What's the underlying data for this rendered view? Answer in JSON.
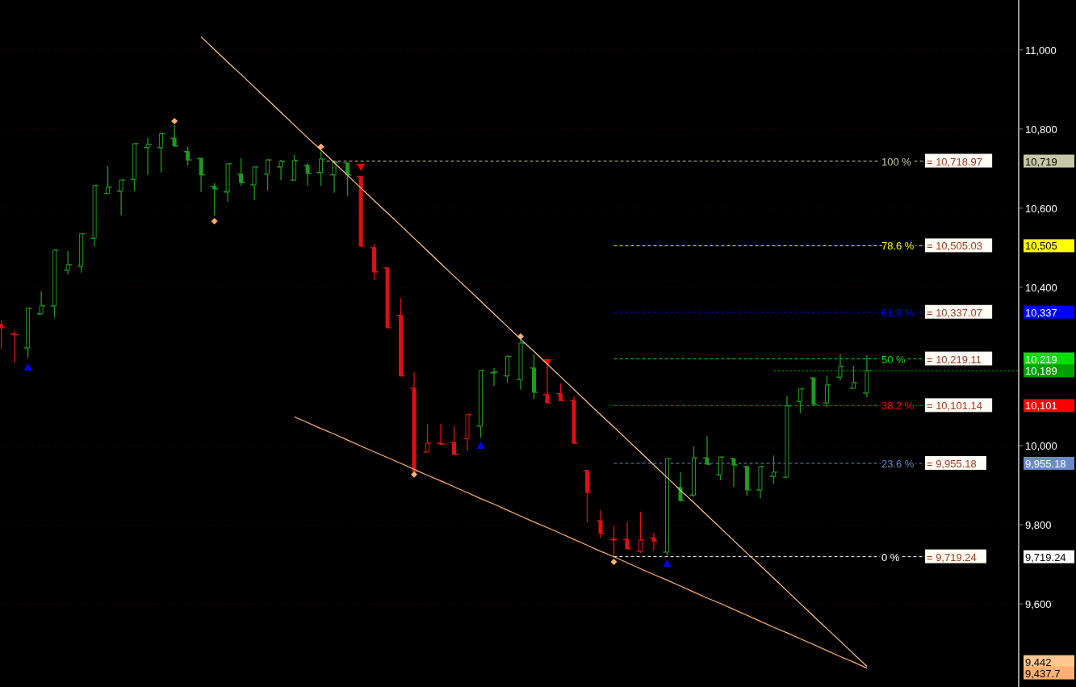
{
  "chart_data": {
    "type": "candlestick",
    "categories": [
      null,
      null,
      null,
      null,
      null,
      null,
      null,
      null,
      null,
      null,
      null,
      null,
      null,
      null,
      null,
      null,
      null,
      null,
      null,
      null,
      null,
      null,
      null,
      null,
      null,
      null,
      null,
      null,
      null,
      null,
      null,
      null,
      null,
      null,
      null,
      null,
      null,
      null,
      null,
      null,
      null,
      null,
      null,
      null,
      null,
      null,
      null,
      null,
      null,
      null,
      null,
      null,
      null,
      null,
      null,
      null,
      null,
      null,
      null,
      null,
      null,
      null,
      null,
      null,
      null,
      null
    ],
    "ohlc": [
      [
        10306,
        10316,
        10245,
        10298
      ],
      [
        10282,
        10290,
        10210,
        10280
      ],
      [
        10247,
        10349,
        10222,
        10347
      ],
      [
        10333,
        10390,
        10331,
        10353
      ],
      [
        10353,
        10496,
        10324,
        10494
      ],
      [
        10443,
        10492,
        10433,
        10457
      ],
      [
        10453,
        10537,
        10437,
        10535
      ],
      [
        10524,
        10659,
        10504,
        10657
      ],
      [
        10637,
        10706,
        10637,
        10653
      ],
      [
        10643,
        10671,
        10582,
        10671
      ],
      [
        10673,
        10763,
        10643,
        10763
      ],
      [
        10753,
        10777,
        10684,
        10761
      ],
      [
        10753,
        10790,
        10690,
        10788
      ],
      [
        10777,
        10810,
        10757,
        10757
      ],
      [
        10743,
        10755,
        10708,
        10722
      ],
      [
        10726,
        10726,
        10641,
        10684
      ],
      [
        10655,
        10663,
        10582,
        10649
      ],
      [
        10641,
        10712,
        10616,
        10712
      ],
      [
        10686,
        10726,
        10657,
        10665
      ],
      [
        10659,
        10704,
        10620,
        10704
      ],
      [
        10686,
        10722,
        10645,
        10722
      ],
      [
        10704,
        10722,
        10671,
        10718
      ],
      [
        10671,
        10735,
        10671,
        10720
      ],
      [
        10708,
        10714,
        10657,
        10688
      ],
      [
        10690,
        10743,
        10657,
        10724
      ],
      [
        10684,
        10718,
        10639,
        10716
      ],
      [
        10714,
        10714,
        10631,
        10684
      ],
      [
        10680,
        10682,
        10504,
        10504
      ],
      [
        10500,
        10510,
        10418,
        10439
      ],
      [
        10449,
        10449,
        10298,
        10298
      ],
      [
        10329,
        10373,
        10176,
        10176
      ],
      [
        10145,
        10186,
        9935,
        9935
      ],
      [
        9984,
        10055,
        9984,
        10006
      ],
      [
        10006,
        10055,
        10002,
        10004
      ],
      [
        10008,
        10049,
        9978,
        9978
      ],
      [
        10018,
        10078,
        9986,
        10078
      ],
      [
        10049,
        10190,
        10020,
        10190
      ],
      [
        10184,
        10196,
        10151,
        10186
      ],
      [
        10176,
        10229,
        10159,
        10225
      ],
      [
        10167,
        10267,
        10141,
        10259
      ],
      [
        10196,
        10231,
        10118,
        10135
      ],
      [
        10129,
        10200,
        10108,
        10108
      ],
      [
        10131,
        10157,
        10114,
        10114
      ],
      [
        10114,
        10125,
        10006,
        10006
      ],
      [
        9937,
        9939,
        9806,
        9882
      ],
      [
        9810,
        9837,
        9767,
        9778
      ],
      [
        9763,
        9798,
        9719,
        9763
      ],
      [
        9763,
        9806,
        9739,
        9739
      ],
      [
        9733,
        9833,
        9729,
        9761
      ],
      [
        9767,
        9780,
        9735,
        9759
      ],
      [
        9731,
        9967,
        9722,
        9967
      ],
      [
        9894,
        9933,
        9861,
        9861
      ],
      [
        9875,
        9998,
        9871,
        9969
      ],
      [
        9969,
        10024,
        9953,
        9953
      ],
      [
        9926,
        9971,
        9912,
        9971
      ],
      [
        9967,
        9967,
        9896,
        9951
      ],
      [
        9947,
        9947,
        9873,
        9888
      ],
      [
        9888,
        9947,
        9867,
        9947
      ],
      [
        9922,
        9975,
        9904,
        9933
      ],
      [
        9920,
        10126,
        9920,
        10100
      ],
      [
        10112,
        10143,
        10082,
        10143
      ],
      [
        10171,
        10171,
        10104,
        10104
      ],
      [
        10108,
        10177,
        10098,
        10153
      ],
      [
        10173,
        10231,
        10165,
        10200
      ],
      [
        10145,
        10202,
        10145,
        10159
      ],
      [
        10133,
        10229,
        10122,
        10189
      ]
    ],
    "colors": [
      "#e01010",
      "#e01010",
      "#1f9a1f",
      "#1f9a1f",
      "#1f9a1f",
      "#1f9a1f",
      "#1f9a1f",
      "#1f9a1f",
      "#1f9a1f",
      "#1f9a1f",
      "#1f9a1f",
      "#1f9a1f",
      "#1f9a1f",
      "#1f9a1f",
      "#1f9a1f",
      "#1f9a1f",
      "#1f9a1f",
      "#1f9a1f",
      "#1f9a1f",
      "#1f9a1f",
      "#1f9a1f",
      "#1f9a1f",
      "#1f9a1f",
      "#1f9a1f",
      "#1f9a1f",
      "#1f9a1f",
      "#1f9a1f",
      "#e01010",
      "#e01010",
      "#e01010",
      "#e01010",
      "#e01010",
      "#e01010",
      "#e01010",
      "#e01010",
      "#e01010",
      "#1f9a1f",
      "#1f9a1f",
      "#1f9a1f",
      "#1f9a1f",
      "#1f9a1f",
      "#e01010",
      "#e01010",
      "#e01010",
      "#e01010",
      "#e01010",
      "#e01010",
      "#e01010",
      "#e01010",
      "#e01010",
      "#1f9a1f",
      "#1f9a1f",
      "#1f9a1f",
      "#1f9a1f",
      "#1f9a1f",
      "#1f9a1f",
      "#1f9a1f",
      "#1f9a1f",
      "#1f9a1f",
      "#1f9a1f",
      "#1f9a1f",
      "#1f9a1f",
      "#1f9a1f",
      "#1f9a1f",
      "#1f9a1f",
      "#1f9a1f"
    ],
    "series": [
      {
        "type": "scatter",
        "marker": "diamond",
        "color": "#ffb070",
        "values": [
          null,
          null,
          null,
          null,
          null,
          null,
          null,
          null,
          null,
          null,
          null,
          null,
          null,
          10820,
          null,
          null,
          10567,
          null,
          null,
          null,
          null,
          null,
          null,
          null,
          10755,
          null,
          null,
          null,
          null,
          null,
          null,
          9927,
          null,
          null,
          null,
          null,
          null,
          null,
          null,
          10276,
          null,
          null,
          null,
          null,
          null,
          null,
          9706,
          null,
          null,
          null,
          null,
          null,
          null,
          null,
          null,
          null,
          null,
          null,
          null,
          null,
          null,
          null,
          null,
          null,
          null,
          null
        ]
      },
      {
        "type": "scatter",
        "marker": "triangle",
        "color": "#0000ff",
        "values": [
          null,
          null,
          10198,
          null,
          null,
          null,
          null,
          null,
          null,
          null,
          null,
          null,
          null,
          null,
          null,
          null,
          null,
          null,
          null,
          null,
          null,
          null,
          null,
          null,
          null,
          null,
          null,
          null,
          null,
          null,
          null,
          null,
          null,
          null,
          null,
          null,
          10000,
          null,
          null,
          null,
          null,
          null,
          null,
          null,
          null,
          null,
          null,
          null,
          null,
          null,
          9702,
          null,
          null,
          null,
          null,
          null,
          null,
          null,
          null,
          null,
          null,
          null,
          null,
          null,
          null,
          null
        ]
      },
      {
        "type": "scatter",
        "marker": "triangle",
        "color": "#ff0000",
        "values": [
          null,
          null,
          null,
          null,
          null,
          null,
          null,
          null,
          null,
          null,
          null,
          null,
          null,
          null,
          null,
          null,
          null,
          null,
          null,
          null,
          null,
          null,
          null,
          null,
          null,
          null,
          null,
          10704,
          null,
          null,
          null,
          null,
          null,
          null,
          null,
          null,
          null,
          null,
          null,
          null,
          null,
          10210,
          null,
          null,
          null,
          null,
          null,
          null,
          null,
          null,
          null,
          null,
          null,
          null,
          null,
          null,
          null,
          null,
          null,
          null,
          null,
          null,
          null,
          null,
          null,
          null
        ]
      },
      {
        "type": "line",
        "marker": "none",
        "color": "#ffc890",
        "values": [
          null,
          null,
          null,
          null,
          null,
          null,
          null,
          null,
          null,
          null,
          null,
          null,
          null,
          null,
          null,
          11033,
          11001,
          10969,
          10938,
          10906,
          10874,
          10842,
          10810,
          10778,
          10747,
          10715,
          10683,
          10651,
          10619,
          10588,
          10556,
          10524,
          10492,
          10460,
          10428,
          10397,
          10365,
          10333,
          10301,
          10269,
          10238,
          10206,
          10174,
          10142,
          10110,
          10078,
          10047,
          10015,
          9983,
          9951,
          9919,
          9887,
          9856,
          9824,
          9792,
          9760,
          9728,
          9697,
          9665,
          9633,
          9601,
          9569,
          9537,
          9506,
          9474,
          9442
        ]
      },
      {
        "type": "line",
        "marker": "none",
        "color": "#ffb070",
        "values": [
          null,
          null,
          null,
          null,
          null,
          null,
          null,
          null,
          null,
          null,
          null,
          null,
          null,
          null,
          null,
          null,
          null,
          null,
          null,
          null,
          null,
          null,
          10073,
          10058,
          10043,
          10029,
          10014,
          9999,
          9984,
          9970,
          9955,
          9940,
          9925,
          9911,
          9896,
          9881,
          9866,
          9852,
          9837,
          9822,
          9807,
          9793,
          9778,
          9763,
          9748,
          9733,
          9719,
          9704,
          9689,
          9674,
          9660,
          9645,
          9630,
          9615,
          9601,
          9586,
          9571,
          9556,
          9541,
          9527,
          9512,
          9497,
          9482,
          9467,
          9453,
          9437.7
        ]
      }
    ],
    "ylim": [
      9390,
      11126
    ],
    "yticks": [
      {
        "value": 9600,
        "label": "9,600"
      },
      {
        "value": 9800,
        "label": "9,800"
      },
      {
        "value": 10000,
        "label": "10,000"
      },
      {
        "value": 10400,
        "label": "10,400"
      },
      {
        "value": 10600,
        "label": "10,600"
      },
      {
        "value": 10800,
        "label": "10,800"
      },
      {
        "value": 11000,
        "label": "11,000"
      },
      {
        "value": 10718.97,
        "label": "10,719"
      },
      {
        "value": 10505.03,
        "label": "10,505"
      },
      {
        "value": 10337.07,
        "label": "10,337"
      },
      {
        "value": 10219.11,
        "label": "10,219"
      },
      {
        "value": 10189,
        "label": "10,189"
      },
      {
        "value": 10101.14,
        "label": "10,101"
      },
      {
        "value": 9955.18,
        "label": "9,955.18"
      },
      {
        "value": 9719.24,
        "label": "9,719.24"
      },
      {
        "value": 9442,
        "label": "9,442"
      },
      {
        "value": 9437.7,
        "label": "9,437.7"
      }
    ],
    "grid": "y",
    "ref_lines": [
      {
        "axis": "y",
        "value": 10718.97,
        "label": "= 10,718.97",
        "color": "#c8c8a8",
        "line_style": "dashed"
      },
      {
        "axis": "y",
        "value": 10505.03,
        "label": "= 10,505.03",
        "color": "#ffff00",
        "line_style": "dashed"
      },
      {
        "axis": "y",
        "value": 10337.07,
        "label": "= 10,337.07",
        "color": "#0000ff",
        "line_style": "dashed"
      },
      {
        "axis": "y",
        "value": 10219.11,
        "label": "= 10,219.11",
        "color": "#00e000",
        "line_style": "dashed"
      },
      {
        "axis": "y",
        "value": 10189,
        "color": "#00a000",
        "line_style": "dotted"
      },
      {
        "axis": "y",
        "value": 10101.14,
        "label": "= 10,101.14",
        "color": "#ff0000",
        "line_style": "dashed"
      },
      {
        "axis": "y",
        "value": 9955.18,
        "label": "= 9,955.18",
        "color": "#6a8ac8",
        "line_style": "dashed"
      },
      {
        "axis": "y",
        "value": 9719.24,
        "label": "= 9,719.24",
        "color": "#ffffff",
        "line_style": "dashed"
      }
    ],
    "annotations": [
      "100 %",
      "78.6 %",
      "61.8 %",
      "50  %",
      "38.2 %",
      "23.6 %",
      "0 %"
    ]
  }
}
